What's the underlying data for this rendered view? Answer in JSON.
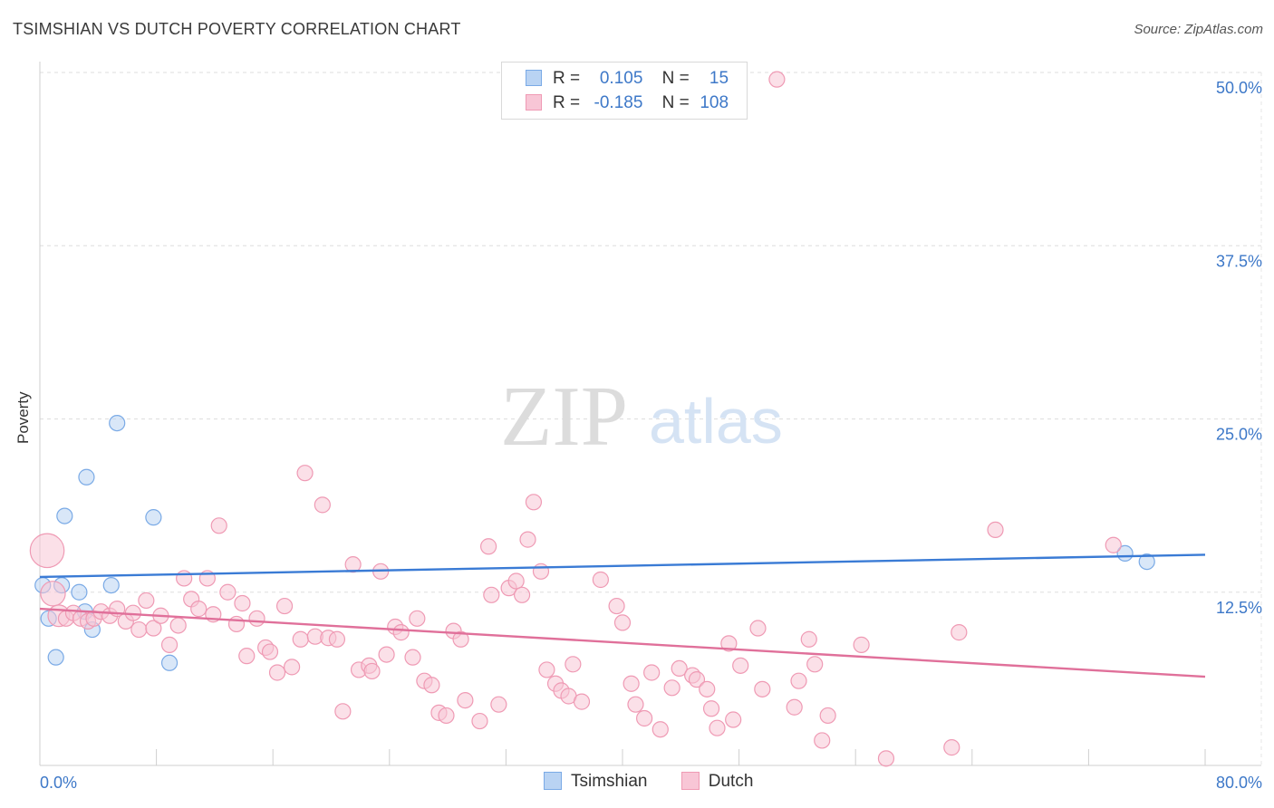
{
  "title": "TSIMSHIAN VS DUTCH POVERTY CORRELATION CHART",
  "source": "Source: ZipAtlas.com",
  "watermark": {
    "zip": "ZIP",
    "atlas": "atlas"
  },
  "legend": {
    "r_label": "R =",
    "n_label": "N =",
    "rows": [
      {
        "series": "Tsimshian",
        "r": "0.105",
        "n": "15",
        "color": "#7aaae6",
        "fill": "#b9d3f3"
      },
      {
        "series": "Dutch",
        "r": "-0.185",
        "n": "108",
        "color": "#ef9ab4",
        "fill": "#f8c6d6"
      }
    ]
  },
  "chart_data": {
    "type": "scatter",
    "title": "TSIMSHIAN VS DUTCH POVERTY CORRELATION CHART",
    "xlabel": "",
    "ylabel": "Poverty",
    "xlim": [
      0,
      80
    ],
    "ylim": [
      0,
      52.5
    ],
    "x_tick_labels": [
      "0.0%",
      "80.0%"
    ],
    "y_ticks": [
      12.5,
      25.0,
      37.5,
      50.0
    ],
    "y_tick_labels": [
      "12.5%",
      "25.0%",
      "37.5%",
      "50.0%"
    ],
    "grid": true,
    "legend_position": "top-center",
    "series": [
      {
        "name": "Tsimshian",
        "color": "#3a7bd5",
        "fill": "#b9d3f3",
        "stroke": "#7aaae6",
        "trend": {
          "x": [
            0,
            80
          ],
          "y": [
            13.6,
            15.2
          ]
        },
        "points": [
          {
            "x": 0.2,
            "y": 13.0,
            "s": 1
          },
          {
            "x": 0.6,
            "y": 10.6,
            "s": 1
          },
          {
            "x": 1.1,
            "y": 7.8,
            "s": 1
          },
          {
            "x": 1.5,
            "y": 13.0,
            "s": 1
          },
          {
            "x": 1.7,
            "y": 18.0,
            "s": 1
          },
          {
            "x": 2.7,
            "y": 12.5,
            "s": 1
          },
          {
            "x": 3.1,
            "y": 11.1,
            "s": 1
          },
          {
            "x": 3.2,
            "y": 20.8,
            "s": 1
          },
          {
            "x": 3.6,
            "y": 9.8,
            "s": 1
          },
          {
            "x": 4.9,
            "y": 13.0,
            "s": 1
          },
          {
            "x": 5.3,
            "y": 24.7,
            "s": 1
          },
          {
            "x": 7.8,
            "y": 17.9,
            "s": 1
          },
          {
            "x": 8.9,
            "y": 7.4,
            "s": 1
          },
          {
            "x": 74.5,
            "y": 15.3,
            "s": 1
          },
          {
            "x": 76.0,
            "y": 14.7,
            "s": 1
          }
        ]
      },
      {
        "name": "Dutch",
        "color": "#e0709a",
        "fill": "#f8c6d6",
        "stroke": "#ef9ab4",
        "trend": {
          "x": [
            0,
            80
          ],
          "y": [
            11.3,
            6.4
          ]
        },
        "points": [
          {
            "x": 0.5,
            "y": 15.5,
            "s": 2.2
          },
          {
            "x": 0.9,
            "y": 12.4,
            "s": 1.6
          },
          {
            "x": 1.3,
            "y": 10.8,
            "s": 1.4
          },
          {
            "x": 1.8,
            "y": 10.6,
            "s": 1
          },
          {
            "x": 2.3,
            "y": 11.0,
            "s": 1
          },
          {
            "x": 2.8,
            "y": 10.6,
            "s": 1
          },
          {
            "x": 3.3,
            "y": 10.4,
            "s": 1
          },
          {
            "x": 3.7,
            "y": 10.6,
            "s": 1
          },
          {
            "x": 4.2,
            "y": 11.1,
            "s": 1
          },
          {
            "x": 4.8,
            "y": 10.8,
            "s": 1
          },
          {
            "x": 5.3,
            "y": 11.3,
            "s": 1
          },
          {
            "x": 5.9,
            "y": 10.4,
            "s": 1
          },
          {
            "x": 6.4,
            "y": 11.0,
            "s": 1
          },
          {
            "x": 6.8,
            "y": 9.8,
            "s": 1
          },
          {
            "x": 7.3,
            "y": 11.9,
            "s": 1
          },
          {
            "x": 7.8,
            "y": 9.9,
            "s": 1
          },
          {
            "x": 8.3,
            "y": 10.8,
            "s": 1
          },
          {
            "x": 8.9,
            "y": 8.7,
            "s": 1
          },
          {
            "x": 9.5,
            "y": 10.1,
            "s": 1
          },
          {
            "x": 9.9,
            "y": 13.5,
            "s": 1
          },
          {
            "x": 10.4,
            "y": 12.0,
            "s": 1
          },
          {
            "x": 10.9,
            "y": 11.3,
            "s": 1
          },
          {
            "x": 11.5,
            "y": 13.5,
            "s": 1
          },
          {
            "x": 11.9,
            "y": 10.9,
            "s": 1
          },
          {
            "x": 12.3,
            "y": 17.3,
            "s": 1
          },
          {
            "x": 12.9,
            "y": 12.5,
            "s": 1
          },
          {
            "x": 13.5,
            "y": 10.2,
            "s": 1
          },
          {
            "x": 13.9,
            "y": 11.7,
            "s": 1
          },
          {
            "x": 14.2,
            "y": 7.9,
            "s": 1
          },
          {
            "x": 14.9,
            "y": 10.6,
            "s": 1
          },
          {
            "x": 15.5,
            "y": 8.5,
            "s": 1
          },
          {
            "x": 15.8,
            "y": 8.2,
            "s": 1
          },
          {
            "x": 16.3,
            "y": 6.7,
            "s": 1
          },
          {
            "x": 16.8,
            "y": 11.5,
            "s": 1
          },
          {
            "x": 17.3,
            "y": 7.1,
            "s": 1
          },
          {
            "x": 17.9,
            "y": 9.1,
            "s": 1
          },
          {
            "x": 18.2,
            "y": 21.1,
            "s": 1
          },
          {
            "x": 18.9,
            "y": 9.3,
            "s": 1
          },
          {
            "x": 19.4,
            "y": 18.8,
            "s": 1
          },
          {
            "x": 19.8,
            "y": 9.2,
            "s": 1
          },
          {
            "x": 20.4,
            "y": 9.1,
            "s": 1
          },
          {
            "x": 20.8,
            "y": 3.9,
            "s": 1
          },
          {
            "x": 21.5,
            "y": 14.5,
            "s": 1
          },
          {
            "x": 21.9,
            "y": 6.9,
            "s": 1
          },
          {
            "x": 22.6,
            "y": 7.2,
            "s": 1
          },
          {
            "x": 22.8,
            "y": 6.8,
            "s": 1
          },
          {
            "x": 23.4,
            "y": 14.0,
            "s": 1
          },
          {
            "x": 23.8,
            "y": 8.0,
            "s": 1
          },
          {
            "x": 24.4,
            "y": 10.0,
            "s": 1
          },
          {
            "x": 24.8,
            "y": 9.6,
            "s": 1
          },
          {
            "x": 25.6,
            "y": 7.8,
            "s": 1
          },
          {
            "x": 25.9,
            "y": 10.6,
            "s": 1
          },
          {
            "x": 26.4,
            "y": 6.1,
            "s": 1
          },
          {
            "x": 26.9,
            "y": 5.8,
            "s": 1
          },
          {
            "x": 27.4,
            "y": 3.8,
            "s": 1
          },
          {
            "x": 27.9,
            "y": 3.6,
            "s": 1
          },
          {
            "x": 28.4,
            "y": 9.7,
            "s": 1
          },
          {
            "x": 28.9,
            "y": 9.1,
            "s": 1
          },
          {
            "x": 29.2,
            "y": 4.7,
            "s": 1
          },
          {
            "x": 30.2,
            "y": 3.2,
            "s": 1
          },
          {
            "x": 30.8,
            "y": 15.8,
            "s": 1
          },
          {
            "x": 31.0,
            "y": 12.3,
            "s": 1
          },
          {
            "x": 31.5,
            "y": 4.4,
            "s": 1
          },
          {
            "x": 32.2,
            "y": 12.8,
            "s": 1
          },
          {
            "x": 32.7,
            "y": 13.3,
            "s": 1
          },
          {
            "x": 33.1,
            "y": 12.3,
            "s": 1
          },
          {
            "x": 33.5,
            "y": 16.3,
            "s": 1
          },
          {
            "x": 33.9,
            "y": 19.0,
            "s": 1
          },
          {
            "x": 34.4,
            "y": 14.0,
            "s": 1
          },
          {
            "x": 34.8,
            "y": 6.9,
            "s": 1
          },
          {
            "x": 35.4,
            "y": 5.9,
            "s": 1
          },
          {
            "x": 35.8,
            "y": 5.4,
            "s": 1
          },
          {
            "x": 36.3,
            "y": 5.0,
            "s": 1
          },
          {
            "x": 36.6,
            "y": 7.3,
            "s": 1
          },
          {
            "x": 37.2,
            "y": 4.6,
            "s": 1
          },
          {
            "x": 38.5,
            "y": 13.4,
            "s": 1
          },
          {
            "x": 39.6,
            "y": 11.5,
            "s": 1
          },
          {
            "x": 40.0,
            "y": 10.3,
            "s": 1
          },
          {
            "x": 40.6,
            "y": 5.9,
            "s": 1
          },
          {
            "x": 40.9,
            "y": 4.4,
            "s": 1
          },
          {
            "x": 41.5,
            "y": 3.4,
            "s": 1
          },
          {
            "x": 42.0,
            "y": 6.7,
            "s": 1
          },
          {
            "x": 42.6,
            "y": 2.6,
            "s": 1
          },
          {
            "x": 43.4,
            "y": 5.6,
            "s": 1
          },
          {
            "x": 43.9,
            "y": 7.0,
            "s": 1
          },
          {
            "x": 44.8,
            "y": 6.5,
            "s": 1
          },
          {
            "x": 45.1,
            "y": 6.2,
            "s": 1
          },
          {
            "x": 45.8,
            "y": 5.5,
            "s": 1
          },
          {
            "x": 46.1,
            "y": 4.1,
            "s": 1
          },
          {
            "x": 46.5,
            "y": 2.7,
            "s": 1
          },
          {
            "x": 47.3,
            "y": 8.8,
            "s": 1
          },
          {
            "x": 47.6,
            "y": 3.3,
            "s": 1
          },
          {
            "x": 48.1,
            "y": 7.2,
            "s": 1
          },
          {
            "x": 49.3,
            "y": 9.9,
            "s": 1
          },
          {
            "x": 49.6,
            "y": 5.5,
            "s": 1
          },
          {
            "x": 50.6,
            "y": 49.5,
            "s": 1
          },
          {
            "x": 51.8,
            "y": 4.2,
            "s": 1
          },
          {
            "x": 52.1,
            "y": 6.1,
            "s": 1
          },
          {
            "x": 52.8,
            "y": 9.1,
            "s": 1
          },
          {
            "x": 53.2,
            "y": 7.3,
            "s": 1
          },
          {
            "x": 53.7,
            "y": 1.8,
            "s": 1
          },
          {
            "x": 54.1,
            "y": 3.6,
            "s": 1
          },
          {
            "x": 56.4,
            "y": 8.7,
            "s": 1
          },
          {
            "x": 58.1,
            "y": 0.5,
            "s": 1
          },
          {
            "x": 62.6,
            "y": 1.3,
            "s": 1
          },
          {
            "x": 63.1,
            "y": 9.6,
            "s": 1
          },
          {
            "x": 65.6,
            "y": 17.0,
            "s": 1
          },
          {
            "x": 73.7,
            "y": 15.9,
            "s": 1
          }
        ]
      }
    ]
  }
}
